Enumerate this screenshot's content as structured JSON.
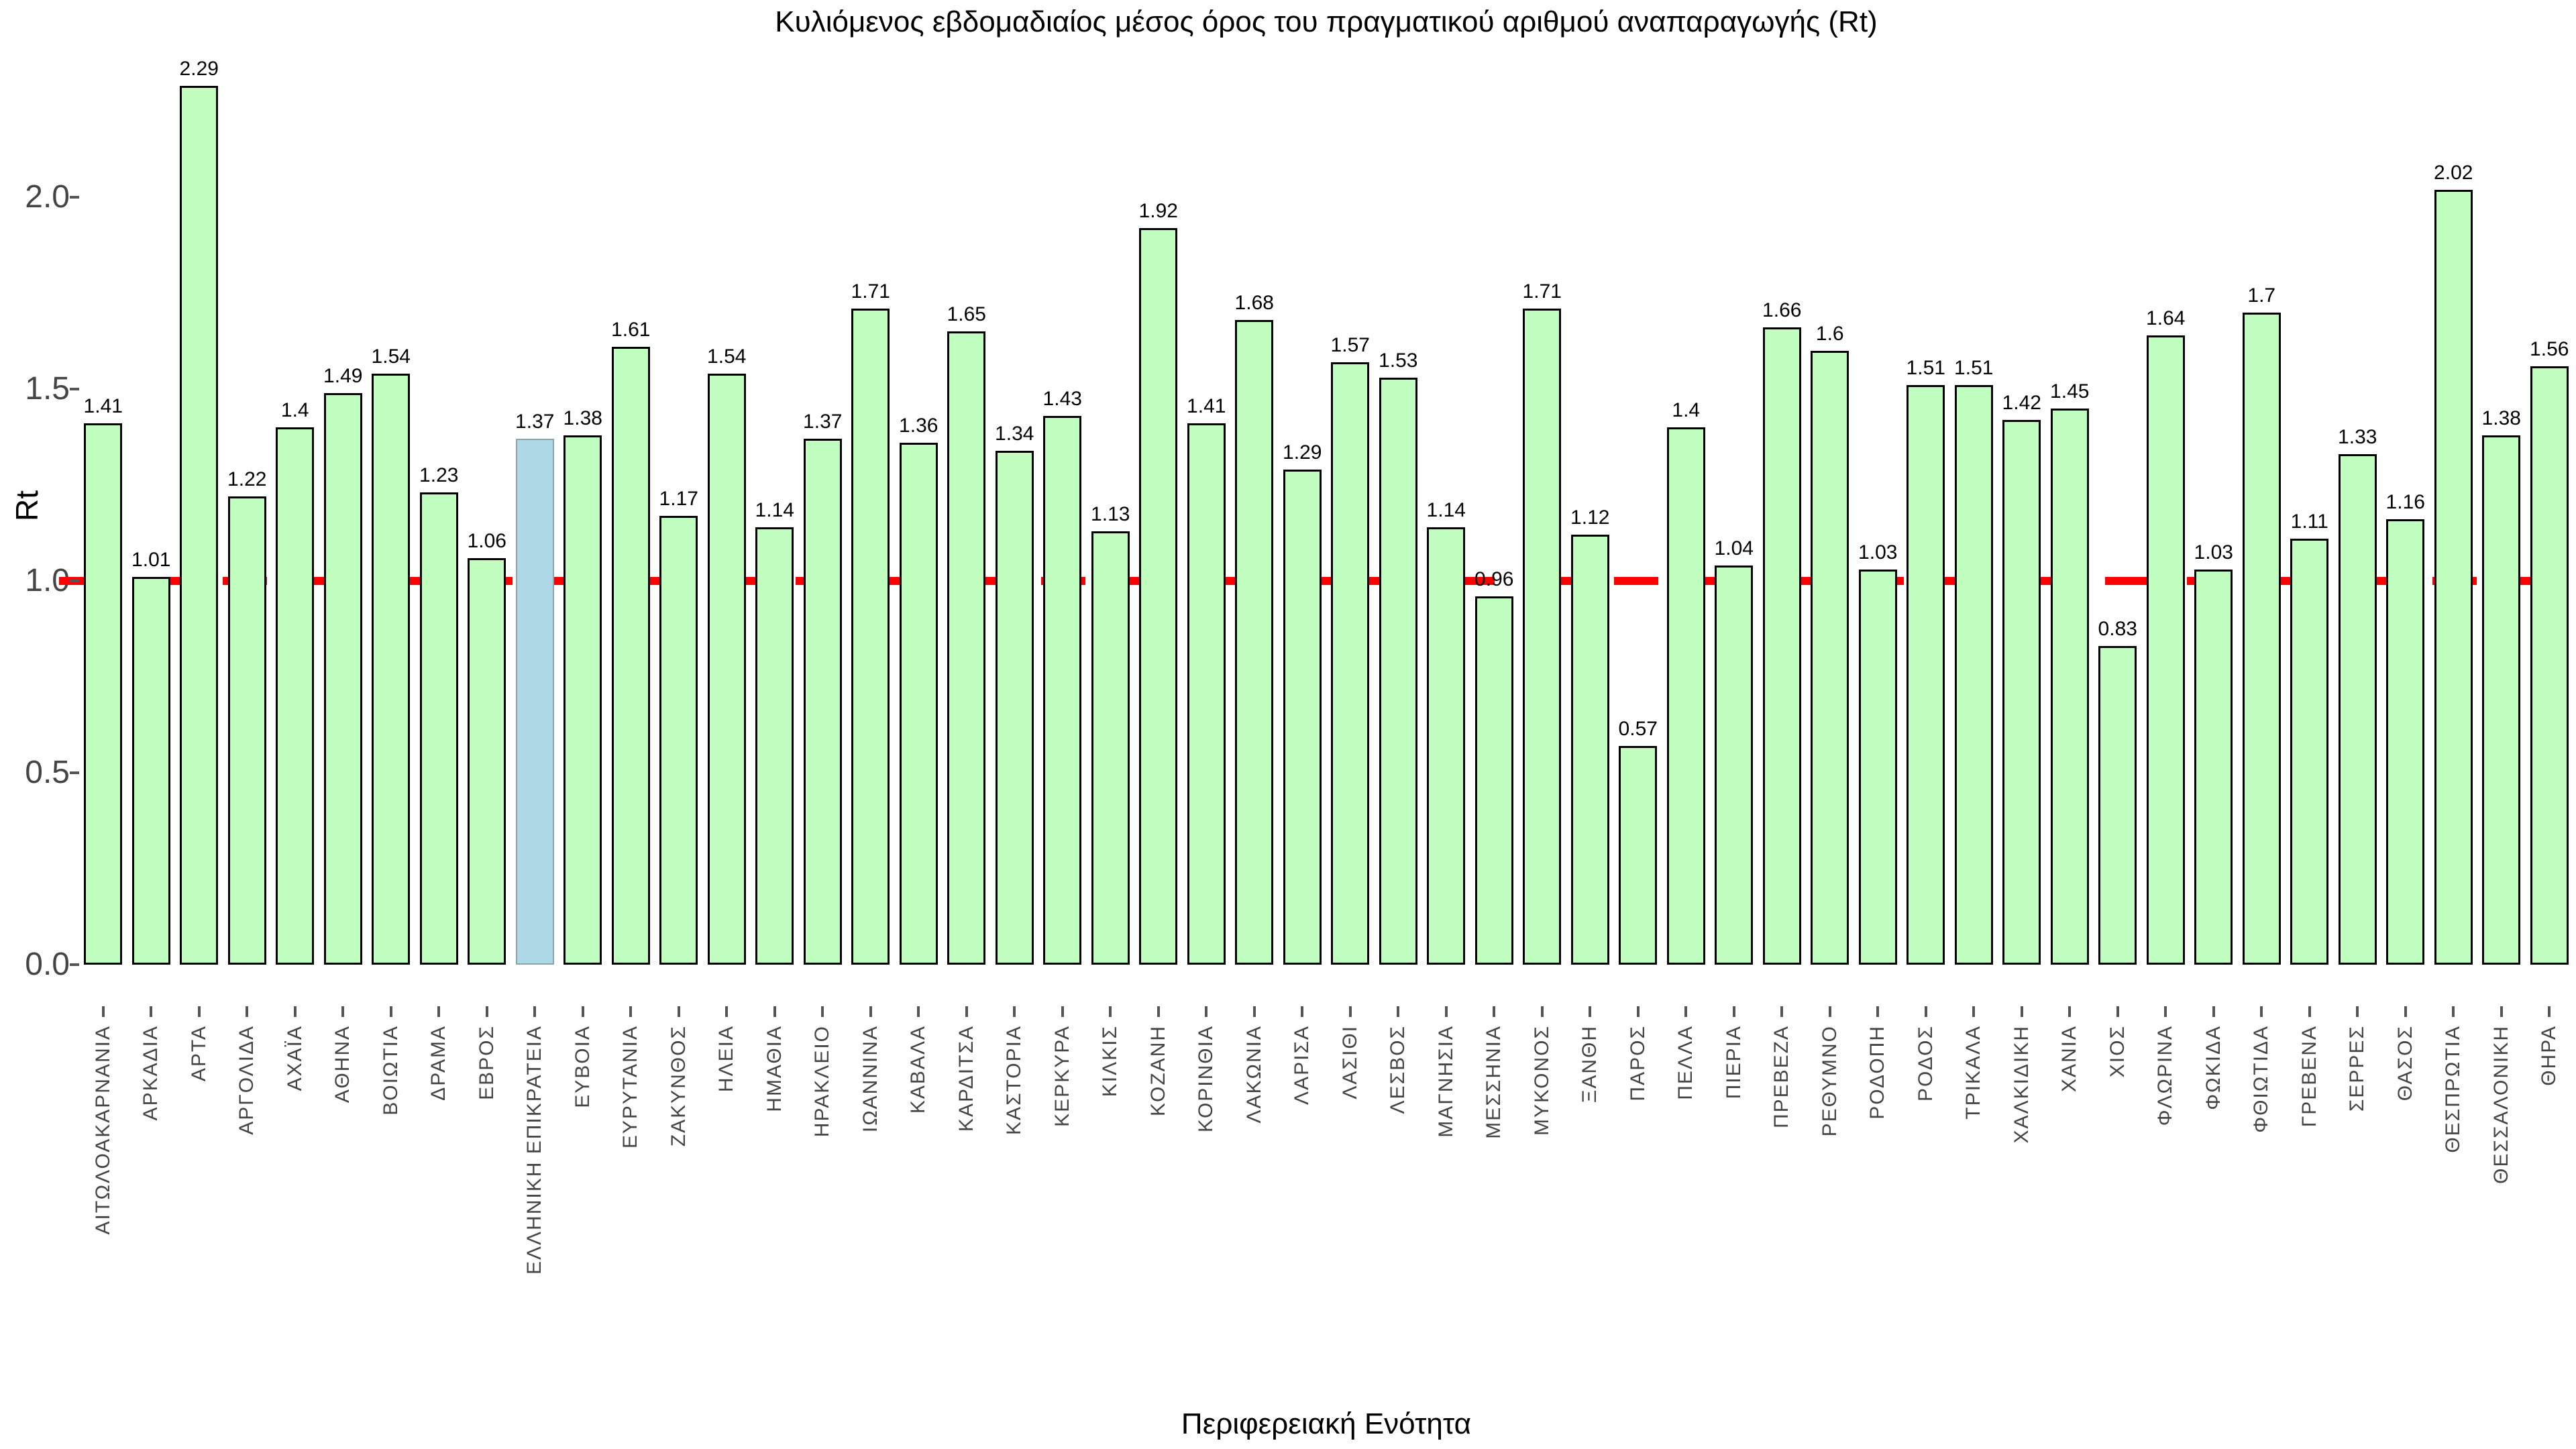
{
  "page": {
    "background": "#ffffff"
  },
  "chart_data": {
    "type": "bar",
    "title": "Κυλιόμενος εβδομαδιαίος μέσος όρος του πραγματικού αριθμού αναπαραγωγής (Rt)",
    "xlabel": "Περιφερειακή Ενότητα",
    "ylabel": "Rt",
    "ylim": [
      0,
      2.39
    ],
    "yticks": [
      0.0,
      0.5,
      1.0,
      1.5,
      2.0
    ],
    "grid": false,
    "legend": false,
    "reference_line": {
      "y": 1.0,
      "style": "dashed"
    },
    "highlight_index": 9,
    "highlight_category": "ΕΛΛΗΝΙΚΗ ΕΠΙΚΡΑΤΕΙΑ",
    "categories": [
      "ΑΙΤΩΛΟΑΚΑΡΝΑΝΙΑ",
      "ΑΡΚΑΔΙΑ",
      "ΑΡΤΑ",
      "ΑΡΓΟΛΙΔΑ",
      "ΑΧΑΪΑ",
      "ΑΘΗΝΑ",
      "ΒΟΙΩΤΙΑ",
      "ΔΡΑΜΑ",
      "ΕΒΡΟΣ",
      "ΕΛΛΗΝΙΚΗ ΕΠΙΚΡΑΤΕΙΑ",
      "ΕΥΒΟΙΑ",
      "ΕΥΡΥΤΑΝΙΑ",
      "ΖΑΚΥΝΘΟΣ",
      "ΗΛΕΙΑ",
      "ΗΜΑΘΙΑ",
      "ΗΡΑΚΛΕΙΟ",
      "ΙΩΑΝΝΙΝΑ",
      "ΚΑΒΑΛΑ",
      "ΚΑΡΔΙΤΣΑ",
      "ΚΑΣΤΟΡΙΑ",
      "ΚΕΡΚΥΡΑ",
      "ΚΙΛΚΙΣ",
      "ΚΟΖΑΝΗ",
      "ΚΟΡΙΝΘΙΑ",
      "ΛΑΚΩΝΙΑ",
      "ΛΑΡΙΣΑ",
      "ΛΑΣΙΘΙ",
      "ΛΕΣΒΟΣ",
      "ΜΑΓΝΗΣΙΑ",
      "ΜΕΣΣΗΝΙΑ",
      "ΜΥΚΟΝΟΣ",
      "ΞΑΝΘΗ",
      "ΠΑΡΟΣ",
      "ΠΕΛΛΑ",
      "ΠΙΕΡΙΑ",
      "ΠΡΕΒΕΖΑ",
      "ΡΕΘΥΜΝΟ",
      "ΡΟΔΟΠΗ",
      "ΡΟΔΟΣ",
      "ΤΡΙΚΑΛΑ",
      "ΧΑΛΚΙΔΙΚΗ",
      "ΧΑΝΙΑ",
      "ΧΙΟΣ",
      "ΦΛΩΡΙΝΑ",
      "ΦΩΚΙΔΑ",
      "ΦΘΙΩΤΙΔΑ",
      "ΓΡΕΒΕΝΑ",
      "ΣΕΡΡΕΣ",
      "ΘΑΣΟΣ",
      "ΘΕΣΠΡΩΤΙΑ",
      "ΘΕΣΣΑΛΟΝΙΚΗ",
      "ΘΗΡΑ"
    ],
    "values": [
      1.41,
      1.01,
      2.29,
      1.22,
      1.4,
      1.49,
      1.54,
      1.23,
      1.06,
      1.37,
      1.38,
      1.61,
      1.17,
      1.54,
      1.14,
      1.37,
      1.71,
      1.36,
      1.65,
      1.34,
      1.43,
      1.13,
      1.92,
      1.41,
      1.68,
      1.29,
      1.57,
      1.53,
      1.14,
      0.96,
      1.71,
      1.12,
      0.57,
      1.4,
      1.04,
      1.66,
      1.6,
      1.03,
      1.51,
      1.51,
      1.42,
      1.45,
      0.83,
      1.64,
      1.03,
      1.7,
      1.11,
      1.33,
      1.16,
      2.02,
      1.38,
      1.56
    ],
    "colors": {
      "bar_fill": "#c1ffc1",
      "bar_border": "#000000",
      "highlight_fill": "#add8e6",
      "highlight_border": "#8fa3ad",
      "reference_line": "#ff0000",
      "axis_text": "#454545",
      "value_label": "#000000",
      "title_text": "#000000",
      "background": "#ffffff"
    }
  }
}
